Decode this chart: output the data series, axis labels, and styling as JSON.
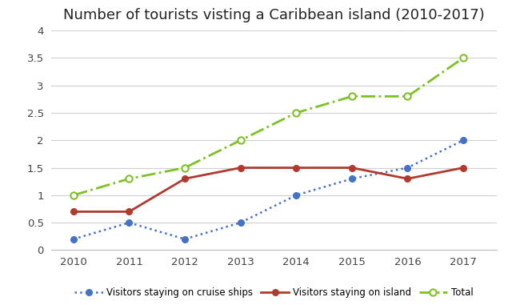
{
  "title": "Number of tourists visting a Caribbean island (2010-2017)",
  "years": [
    2010,
    2011,
    2012,
    2013,
    2014,
    2015,
    2016,
    2017
  ],
  "cruise_ships": [
    0.2,
    0.5,
    0.2,
    0.5,
    1.0,
    1.3,
    1.5,
    2.0
  ],
  "island": [
    0.7,
    0.7,
    1.3,
    1.5,
    1.5,
    1.5,
    1.3,
    1.5
  ],
  "total": [
    1.0,
    1.3,
    1.5,
    2.0,
    2.5,
    2.8,
    2.8,
    3.5
  ],
  "cruise_color": "#4472C4",
  "island_color": "#B03A2E",
  "total_color": "#7DC124",
  "ylim": [
    0,
    4
  ],
  "ytick_vals": [
    0,
    0.5,
    1.0,
    1.5,
    2.0,
    2.5,
    3.0,
    3.5,
    4.0
  ],
  "ytick_labels": [
    "0",
    "0.5",
    "1",
    "1.5",
    "2",
    "2.5",
    "3",
    "3.5",
    "4"
  ],
  "legend_cruise": "Visitors staying on cruise ships",
  "legend_island": "Visitors staying on island",
  "legend_total": "Total",
  "background_color": "#ffffff",
  "title_fontsize": 13
}
